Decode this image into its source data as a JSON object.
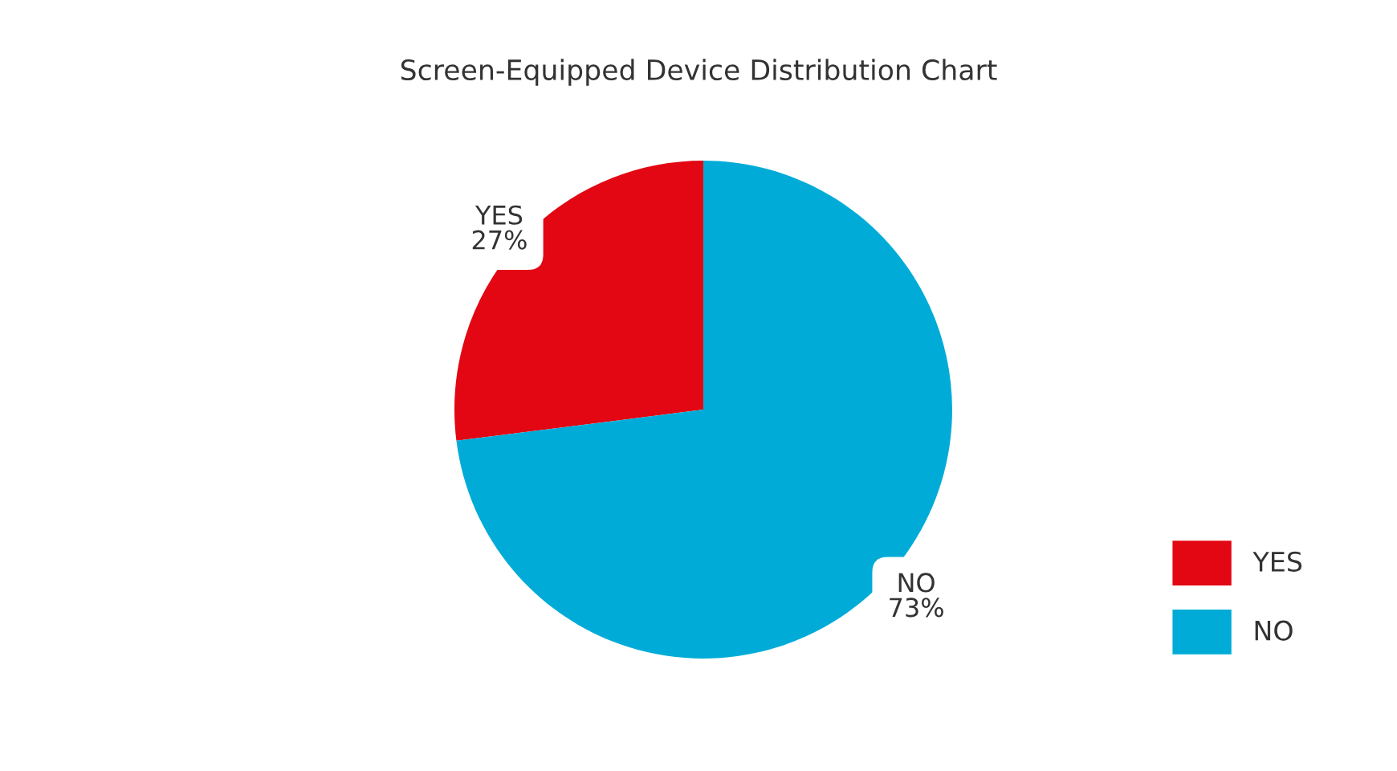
{
  "chart_data": {
    "type": "pie",
    "title": "Screen-Equipped Device Distribution Chart",
    "categories": [
      "YES",
      "NO"
    ],
    "values": [
      27,
      73
    ],
    "value_labels": [
      "27%",
      "73%"
    ],
    "colors": [
      "#e30613",
      "#00acd7"
    ],
    "legend": "bottom right"
  }
}
